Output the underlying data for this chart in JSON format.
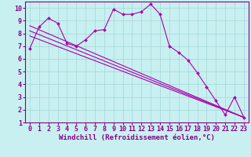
{
  "background_color": "#c8f0f0",
  "grid_color": "#a8dada",
  "line_color": "#aa00aa",
  "xlabel": "Windchill (Refroidissement éolien,°C)",
  "xlim": [
    -0.5,
    23.5
  ],
  "ylim": [
    1,
    10.5
  ],
  "yticks": [
    1,
    2,
    3,
    4,
    5,
    6,
    7,
    8,
    9,
    10
  ],
  "xticks": [
    0,
    1,
    2,
    3,
    4,
    5,
    6,
    7,
    8,
    9,
    10,
    11,
    12,
    13,
    14,
    15,
    16,
    17,
    18,
    19,
    20,
    21,
    22,
    23
  ],
  "line1_x": [
    0,
    1,
    2,
    3,
    4,
    5,
    6,
    7,
    8,
    9,
    10,
    11,
    12,
    13,
    14,
    15,
    16,
    17,
    18,
    19,
    20,
    21,
    22,
    23
  ],
  "line1_y": [
    6.8,
    8.5,
    9.2,
    8.8,
    7.2,
    7.0,
    7.5,
    8.2,
    8.3,
    9.9,
    9.5,
    9.5,
    9.7,
    10.3,
    9.5,
    7.0,
    6.5,
    5.9,
    4.9,
    3.8,
    2.7,
    1.6,
    3.0,
    1.4
  ],
  "line2_x": [
    0,
    23
  ],
  "line2_y": [
    7.8,
    1.4
  ],
  "line3_x": [
    0,
    23
  ],
  "line3_y": [
    8.2,
    1.4
  ],
  "line4_x": [
    0,
    23
  ],
  "line4_y": [
    8.6,
    1.4
  ],
  "xlabel_fontsize": 6.5,
  "tick_fontsize": 6.0,
  "label_color": "#880088",
  "spine_color": "#880088"
}
